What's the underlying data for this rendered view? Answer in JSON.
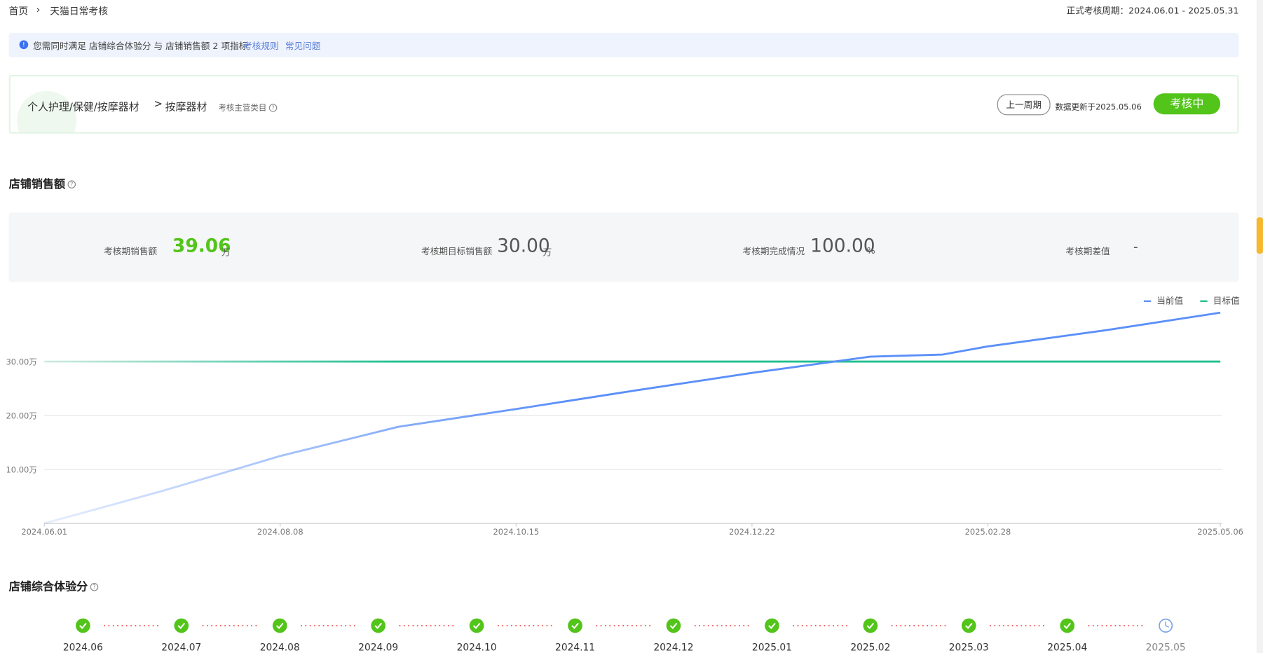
{
  "breadcrumb": {
    "home": "首页",
    "separator": "›",
    "current": "天猫日常考核"
  },
  "period": "正式考核周期：2024.06.01 - 2025.05.31",
  "notice": {
    "text": "您需同时满足 店铺综合体验分 与 店铺销售额 2 项指标",
    "links": [
      "考核规则",
      "常见问题"
    ]
  },
  "category_card": {
    "path": "个人护理/保健/按摩器材",
    "separator": ">",
    "leaf": "按摩器材",
    "tag": "考核主营类目",
    "prev_button": "上一周期",
    "updated": "数据更新于2025.05.06",
    "status": "考核中"
  },
  "sales_section": {
    "title": "店铺销售额",
    "stats": [
      {
        "label": "考核期销售额",
        "value": "39.06",
        "unit": "万"
      },
      {
        "label": "考核期目标销售额",
        "value": "30.00",
        "unit": "万"
      },
      {
        "label": "考核期完成情况",
        "value": "100.00",
        "unit": "%"
      },
      {
        "label": "考核期差值",
        "value": "-"
      }
    ]
  },
  "chart_data": {
    "type": "line",
    "x": [
      "2024.06.01",
      "2024.07.05",
      "2024.08.08",
      "2024.09.11",
      "2024.10.15",
      "2024.11.18",
      "2024.12.22",
      "2025.01.25",
      "2025.02.15",
      "2025.02.28",
      "2025.04.03",
      "2025.05.06"
    ],
    "series": [
      {
        "name": "当前值",
        "color": "#5b8ff9",
        "values": [
          0,
          6.0,
          12.5,
          17.9,
          21.2,
          24.6,
          27.9,
          30.9,
          31.3,
          32.8,
          35.8,
          39.06
        ]
      },
      {
        "name": "目标值",
        "color": "#1fbf8f",
        "values": [
          30,
          30,
          30,
          30,
          30,
          30,
          30,
          30,
          30,
          30,
          30,
          30
        ]
      }
    ],
    "xlim": [
      "2024.06.01",
      "2025.05.06"
    ],
    "xticks": [
      "2024.06.01",
      "2024.08.08",
      "2024.10.15",
      "2024.12.22",
      "2025.02.28",
      "2025.05.06"
    ],
    "ylim": [
      0,
      40
    ],
    "yticks": [
      {
        "value": 10,
        "label": "10.00万"
      },
      {
        "value": 20,
        "label": "20.00万"
      },
      {
        "value": 30,
        "label": "30.00万"
      }
    ],
    "grid": true,
    "legend": "top-right"
  },
  "experience_section": {
    "title": "店铺综合体验分",
    "months": [
      {
        "label": "2024.06",
        "passed": true
      },
      {
        "label": "2024.07",
        "passed": true
      },
      {
        "label": "2024.08",
        "passed": true
      },
      {
        "label": "2024.09",
        "passed": true
      },
      {
        "label": "2024.10",
        "passed": true
      },
      {
        "label": "2024.11",
        "passed": true
      },
      {
        "label": "2024.12",
        "passed": true
      },
      {
        "label": "2025.01",
        "passed": true
      },
      {
        "label": "2025.02",
        "passed": true
      },
      {
        "label": "2025.03",
        "passed": true
      },
      {
        "label": "2025.04",
        "passed": true
      },
      {
        "label": "2025.05",
        "passed": false
      }
    ]
  }
}
